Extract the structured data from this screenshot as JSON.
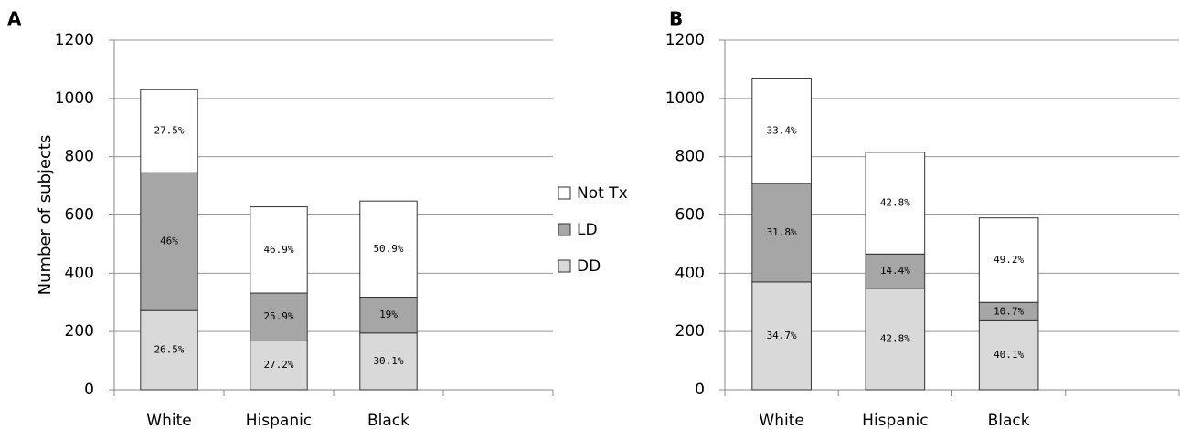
{
  "chart_data": [
    {
      "type": "bar",
      "stacked": true,
      "panel": "A",
      "ylabel": "Number of subjects",
      "categories": [
        "White",
        "Hispanic",
        "Black",
        null
      ],
      "ylim": [
        0,
        1200
      ],
      "yticks": [
        0,
        200,
        400,
        600,
        800,
        1000,
        1200
      ],
      "grid": true,
      "legend": "right",
      "series": [
        {
          "name": "DD",
          "color": "#d9d9d9",
          "values": [
            272,
            170,
            195,
            null
          ],
          "percent_labels": [
            "26.5%",
            "27.2%",
            "30.1%",
            null
          ]
        },
        {
          "name": "LD",
          "color": "#a6a6a6",
          "values": [
            473,
            162,
            123,
            null
          ],
          "percent_labels": [
            "46%",
            "25.9%",
            "19%",
            null
          ]
        },
        {
          "name": "Not Tx",
          "color": "#ffffff",
          "values": [
            285,
            296,
            330,
            null
          ],
          "percent_labels": [
            "27.5%",
            "46.9%",
            "50.9%",
            null
          ]
        }
      ]
    },
    {
      "type": "bar",
      "stacked": true,
      "panel": "B",
      "categories": [
        "White",
        "Hispanic",
        "Black",
        null
      ],
      "ylim": [
        0,
        1200
      ],
      "yticks": [
        0,
        200,
        400,
        600,
        800,
        1000,
        1200
      ],
      "grid": true,
      "series": [
        {
          "name": "DD",
          "color": "#d9d9d9",
          "values": [
            370,
            348,
            237,
            null
          ],
          "percent_labels": [
            "34.7%",
            "42.8%",
            "40.1%",
            null
          ]
        },
        {
          "name": "LD",
          "color": "#a6a6a6",
          "values": [
            338,
            118,
            63,
            null
          ],
          "percent_labels": [
            "31.8%",
            "14.4%",
            "10.7%",
            null
          ]
        },
        {
          "name": "Not Tx",
          "color": "#ffffff",
          "values": [
            359,
            349,
            290,
            null
          ],
          "percent_labels": [
            "33.4%",
            "42.8%",
            "49.2%",
            null
          ]
        }
      ]
    }
  ]
}
